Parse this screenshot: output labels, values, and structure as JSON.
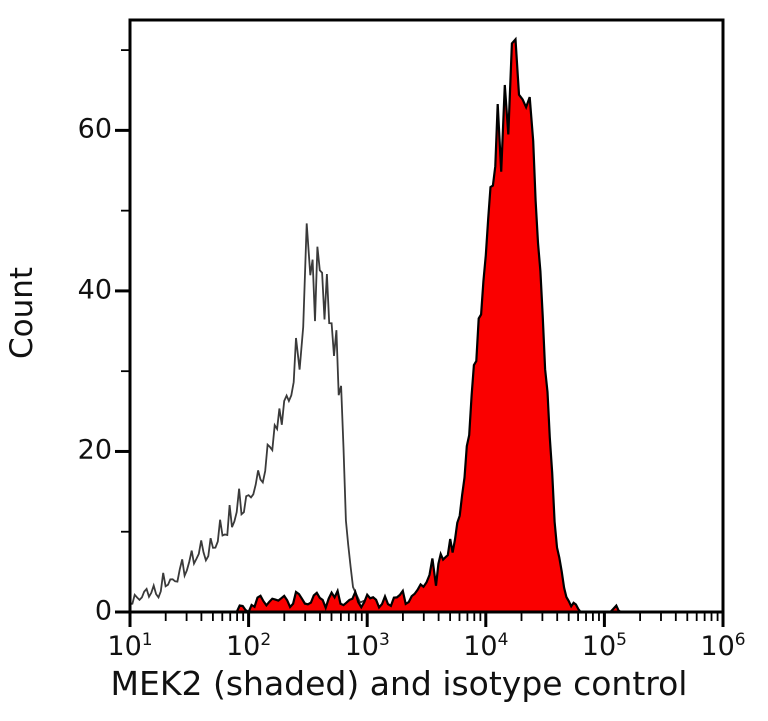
{
  "figure": {
    "kind": "flow-cytometry-histogram",
    "background": "#ffffff"
  },
  "colors": {
    "mek2_fill": "#fa0000",
    "mek2_outline": "#000000",
    "isotype_line": "#3a3a3a",
    "axis": "#000000"
  },
  "chart_data": {
    "type": "area",
    "title": "",
    "xlabel": "MEK2 (shaded) and isotype control",
    "ylabel": "Count",
    "x_scale": "log10",
    "x_log_range": [
      1,
      6
    ],
    "x_major_exponents": [
      1,
      2,
      3,
      4,
      5,
      6
    ],
    "x_tick_base": "10",
    "y_ticks": [
      0,
      20,
      40,
      60
    ],
    "y_minor_ticks": [
      10,
      30,
      50,
      70
    ],
    "ylim": [
      0,
      73.75
    ],
    "grid": false,
    "legend": "none",
    "series": [
      {
        "name": "isotype control",
        "style": "open",
        "line_color": "#3a3a3a",
        "fill": "none",
        "peak": {
          "x_log10": 2.49,
          "count": 47
        },
        "points_log10x_count": [
          [
            1.0,
            1
          ],
          [
            1.04,
            2
          ],
          [
            1.08,
            1
          ],
          [
            1.12,
            3
          ],
          [
            1.16,
            2
          ],
          [
            1.2,
            3
          ],
          [
            1.24,
            2
          ],
          [
            1.28,
            4
          ],
          [
            1.32,
            3
          ],
          [
            1.36,
            5
          ],
          [
            1.4,
            4
          ],
          [
            1.44,
            6
          ],
          [
            1.48,
            5
          ],
          [
            1.52,
            7
          ],
          [
            1.56,
            6
          ],
          [
            1.6,
            8
          ],
          [
            1.64,
            7
          ],
          [
            1.68,
            9
          ],
          [
            1.72,
            8
          ],
          [
            1.76,
            11
          ],
          [
            1.8,
            9
          ],
          [
            1.84,
            12
          ],
          [
            1.88,
            11
          ],
          [
            1.92,
            14
          ],
          [
            1.96,
            13
          ],
          [
            2.0,
            16
          ],
          [
            2.04,
            15
          ],
          [
            2.08,
            18
          ],
          [
            2.12,
            17
          ],
          [
            2.16,
            21
          ],
          [
            2.2,
            20
          ],
          [
            2.24,
            24
          ],
          [
            2.28,
            23
          ],
          [
            2.32,
            28
          ],
          [
            2.36,
            26
          ],
          [
            2.4,
            33
          ],
          [
            2.43,
            29
          ],
          [
            2.46,
            38
          ],
          [
            2.49,
            47
          ],
          [
            2.52,
            41
          ],
          [
            2.54,
            44
          ],
          [
            2.56,
            37
          ],
          [
            2.58,
            43
          ],
          [
            2.6,
            40
          ],
          [
            2.62,
            44
          ],
          [
            2.64,
            38
          ],
          [
            2.66,
            41
          ],
          [
            2.68,
            35
          ],
          [
            2.7,
            38
          ],
          [
            2.72,
            30
          ],
          [
            2.74,
            34
          ],
          [
            2.76,
            25
          ],
          [
            2.78,
            29
          ],
          [
            2.8,
            22
          ],
          [
            2.82,
            12
          ],
          [
            2.84,
            8
          ],
          [
            2.86,
            5
          ],
          [
            2.88,
            3
          ],
          [
            2.91,
            2
          ],
          [
            2.94,
            1
          ],
          [
            2.97,
            1
          ],
          [
            3.0,
            0
          ]
        ]
      },
      {
        "name": "MEK2 (shaded)",
        "style": "filled",
        "line_color": "#000000",
        "fill": "#fa0000",
        "peak": {
          "x_log10": 4.25,
          "count": 70
        },
        "points_log10x_count": [
          [
            1.9,
            0
          ],
          [
            1.95,
            1
          ],
          [
            2.0,
            0
          ],
          [
            2.05,
            1
          ],
          [
            2.1,
            2
          ],
          [
            2.15,
            1
          ],
          [
            2.2,
            2
          ],
          [
            2.25,
            1
          ],
          [
            2.3,
            2
          ],
          [
            2.35,
            1
          ],
          [
            2.4,
            2
          ],
          [
            2.45,
            2
          ],
          [
            2.5,
            1
          ],
          [
            2.55,
            2
          ],
          [
            2.6,
            2
          ],
          [
            2.65,
            1
          ],
          [
            2.7,
            2
          ],
          [
            2.75,
            2
          ],
          [
            2.8,
            1
          ],
          [
            2.85,
            2
          ],
          [
            2.9,
            2
          ],
          [
            2.95,
            1
          ],
          [
            3.0,
            2
          ],
          [
            3.05,
            2
          ],
          [
            3.1,
            1
          ],
          [
            3.15,
            2
          ],
          [
            3.2,
            1
          ],
          [
            3.25,
            2
          ],
          [
            3.3,
            2
          ],
          [
            3.35,
            1
          ],
          [
            3.4,
            2
          ],
          [
            3.45,
            3
          ],
          [
            3.5,
            4
          ],
          [
            3.55,
            6
          ],
          [
            3.58,
            4
          ],
          [
            3.62,
            8
          ],
          [
            3.66,
            6
          ],
          [
            3.7,
            9
          ],
          [
            3.74,
            8
          ],
          [
            3.78,
            12
          ],
          [
            3.82,
            16
          ],
          [
            3.86,
            22
          ],
          [
            3.9,
            29
          ],
          [
            3.94,
            36
          ],
          [
            3.98,
            42
          ],
          [
            4.02,
            48
          ],
          [
            4.06,
            55
          ],
          [
            4.1,
            61
          ],
          [
            4.13,
            57
          ],
          [
            4.16,
            65
          ],
          [
            4.19,
            60
          ],
          [
            4.22,
            68
          ],
          [
            4.25,
            70
          ],
          [
            4.28,
            64
          ],
          [
            4.31,
            67
          ],
          [
            4.34,
            62
          ],
          [
            4.37,
            63
          ],
          [
            4.4,
            57
          ],
          [
            4.44,
            48
          ],
          [
            4.48,
            37
          ],
          [
            4.52,
            26
          ],
          [
            4.56,
            16
          ],
          [
            4.6,
            9
          ],
          [
            4.64,
            5
          ],
          [
            4.68,
            2
          ],
          [
            4.72,
            1
          ],
          [
            4.76,
            1
          ],
          [
            4.8,
            0
          ],
          [
            5.05,
            0
          ],
          [
            5.1,
            1
          ],
          [
            5.14,
            0
          ]
        ]
      }
    ]
  }
}
